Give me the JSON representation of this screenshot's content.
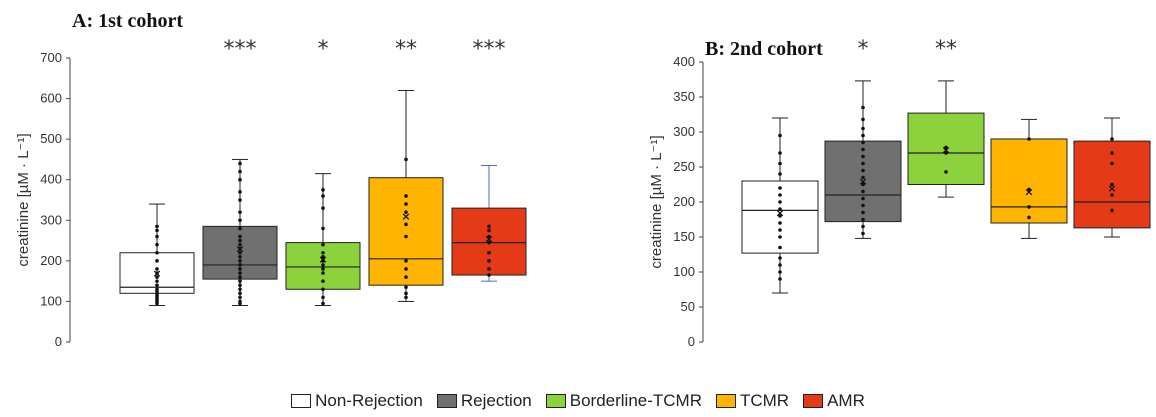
{
  "legend": [
    {
      "name": "Non-Rejection",
      "color": "#ffffff"
    },
    {
      "name": "Rejection",
      "color": "#707070"
    },
    {
      "name": "Borderline-TCMR",
      "color": "#8bd23c"
    },
    {
      "name": "TCMR",
      "color": "#ffb400"
    },
    {
      "name": "AMR",
      "color": "#e53a17"
    }
  ],
  "chart_data": [
    {
      "type": "box",
      "title": "A: 1st cohort",
      "ylabel": "creatinine [µM · L⁻¹]",
      "ylim": [
        0,
        700
      ],
      "yticks": [
        0,
        100,
        200,
        300,
        400,
        500,
        600,
        700
      ],
      "categories": [
        "Non-Rejection",
        "Rejection",
        "Borderline-TCMR",
        "TCMR",
        "AMR"
      ],
      "significance": [
        "",
        "***",
        "*",
        "**",
        "***"
      ],
      "boxes": [
        {
          "min": 90,
          "q1": 120,
          "median": 135,
          "q3": 220,
          "max": 340,
          "mean": 170,
          "whisker_color": "#222222",
          "points": [
            95,
            100,
            105,
            110,
            115,
            120,
            125,
            130,
            140,
            150,
            160,
            170,
            180,
            200,
            220,
            240,
            260,
            275,
            285
          ]
        },
        {
          "min": 90,
          "q1": 155,
          "median": 190,
          "q3": 285,
          "max": 450,
          "mean": 230,
          "whisker_color": "#222222",
          "points": [
            95,
            100,
            110,
            120,
            130,
            140,
            150,
            160,
            170,
            180,
            190,
            200,
            210,
            220,
            230,
            240,
            250,
            260,
            280,
            300,
            320,
            350,
            370,
            400,
            420,
            440
          ]
        },
        {
          "min": 90,
          "q1": 130,
          "median": 185,
          "q3": 245,
          "max": 415,
          "mean": 205,
          "whisker_color": "#222222",
          "points": [
            95,
            110,
            130,
            150,
            170,
            180,
            190,
            200,
            210,
            220,
            240,
            280,
            330,
            360,
            375
          ]
        },
        {
          "min": 100,
          "q1": 140,
          "median": 205,
          "q3": 405,
          "max": 620,
          "mean": 310,
          "whisker_color": "#222222",
          "points": [
            110,
            120,
            135,
            160,
            180,
            200,
            260,
            290,
            320,
            340,
            360,
            450
          ]
        },
        {
          "min": 150,
          "q1": 165,
          "median": 245,
          "q3": 330,
          "max": 435,
          "mean": 255,
          "whisker_color": "#4a6fc0",
          "points": [
            165,
            180,
            200,
            220,
            245,
            260,
            275,
            285
          ]
        }
      ]
    },
    {
      "type": "box",
      "title": "B: 2nd cohort",
      "ylabel": "creatinine [µM · L⁻¹]",
      "ylim": [
        0,
        400
      ],
      "yticks": [
        0,
        50,
        100,
        150,
        200,
        250,
        300,
        350,
        400
      ],
      "categories": [
        "Non-Rejection",
        "Rejection",
        "Borderline-TCMR",
        "TCMR",
        "AMR"
      ],
      "significance": [
        "",
        "*",
        "**",
        "",
        ""
      ],
      "boxes": [
        {
          "min": 70,
          "q1": 127,
          "median": 188,
          "q3": 230,
          "max": 320,
          "mean": 185,
          "whisker_color": "#222222",
          "points": [
            90,
            100,
            110,
            120,
            135,
            150,
            160,
            170,
            180,
            190,
            200,
            210,
            220,
            240,
            255,
            270,
            295
          ]
        },
        {
          "min": 148,
          "q1": 172,
          "median": 210,
          "q3": 287,
          "max": 373,
          "mean": 230,
          "whisker_color": "#222222",
          "points": [
            155,
            165,
            175,
            185,
            195,
            205,
            215,
            225,
            235,
            245,
            255,
            265,
            275,
            285,
            295,
            305,
            318,
            335
          ]
        },
        {
          "min": 207,
          "q1": 225,
          "median": 270,
          "q3": 327,
          "max": 373,
          "mean": 275,
          "whisker_color": "#222222",
          "points": [
            243,
            270,
            278
          ]
        },
        {
          "min": 148,
          "q1": 170,
          "median": 193,
          "q3": 290,
          "max": 318,
          "mean": 215,
          "whisker_color": "#222222",
          "points": [
            178,
            193,
            218,
            290
          ]
        },
        {
          "min": 150,
          "q1": 163,
          "median": 200,
          "q3": 287,
          "max": 320,
          "mean": 220,
          "whisker_color": "#222222",
          "points": [
            188,
            210,
            225,
            255,
            270,
            290
          ]
        }
      ]
    }
  ]
}
